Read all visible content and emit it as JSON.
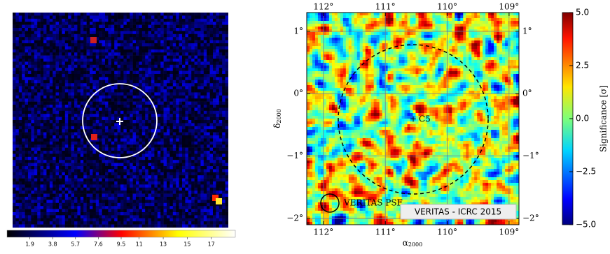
{
  "chart_data": [
    {
      "type": "heatmap",
      "colorbar": {
        "lim": [
          0,
          19
        ],
        "ticks": [
          1.9,
          3.8,
          5.7,
          7.6,
          9.5,
          11,
          13,
          15,
          17
        ]
      }
    },
    {
      "type": "heatmap",
      "xlabel": "α",
      "xlabel_sub": "2000",
      "ylabel": "δ",
      "ylabel_sub": "2000",
      "xlim": [
        112.27,
        108.84
      ],
      "ylim": [
        -2.1,
        1.3
      ],
      "xticks": [
        {
          "value": 112,
          "label": "112°"
        },
        {
          "value": 111,
          "label": "111°"
        },
        {
          "value": 110,
          "label": "110°"
        },
        {
          "value": 109,
          "label": "109°"
        }
      ],
      "yticks": [
        {
          "value": 1,
          "label": "1°"
        },
        {
          "value": 0,
          "label": "0°"
        },
        {
          "value": -1,
          "label": "−1°"
        },
        {
          "value": -2,
          "label": "−2°"
        }
      ],
      "grid": true,
      "source": {
        "marker": "+",
        "name": "C5"
      },
      "psf_label": "VERITAS PSF",
      "credit": "VERITAS - ICRC 2015",
      "colorbar": {
        "label": "Significance [σ]",
        "lim": [
          -5,
          5
        ],
        "ticks": [
          {
            "value": 5,
            "label": "5.0"
          },
          {
            "value": 2.5,
            "label": "2.5"
          },
          {
            "value": 0,
            "label": "0.0"
          },
          {
            "value": -2.5,
            "label": "−2.5"
          },
          {
            "value": -5,
            "label": "−5.0"
          }
        ]
      }
    }
  ]
}
